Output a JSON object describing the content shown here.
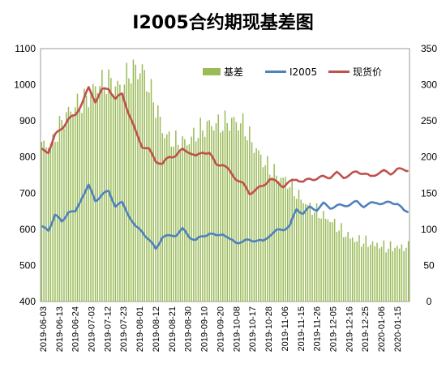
{
  "chart_data": {
    "type": "bar+line",
    "title": "I2005合约期现基差图",
    "y_left": {
      "range": [
        400,
        1100
      ],
      "ticks": [
        "400",
        "500",
        "600",
        "700",
        "800",
        "900",
        "1000",
        "1100"
      ]
    },
    "y_right": {
      "range": [
        0,
        350
      ],
      "ticks": [
        "0",
        "50",
        "100",
        "150",
        "200",
        "250",
        "300",
        "350"
      ]
    },
    "x_tick_labels": [
      "2019-06-03",
      "2019-06-13",
      "2019-06-24",
      "2019-07-03",
      "2019-07-12",
      "2019-07-23",
      "2019-08-01",
      "2019-08-12",
      "2019-08-21",
      "2019-08-30",
      "2019-09-10",
      "2019-09-20",
      "2019-10-08",
      "2019-10-17",
      "2019-10-28",
      "2019-11-06",
      "2019-11-15",
      "2019-11-26",
      "2019-12-05",
      "2019-12-16",
      "2019-12-25",
      "2020-01-06",
      "2020-01-15"
    ],
    "legend": [
      {
        "name": "基差",
        "color": "#9bbb59",
        "kind": "bar"
      },
      {
        "name": "I2005",
        "color": "#4f81bd",
        "kind": "line"
      },
      {
        "name": "现货价",
        "color": "#c0504d",
        "kind": "line"
      }
    ],
    "series": [
      {
        "name": "基差",
        "axis": "right",
        "x": [
          0,
          5,
          10,
          15,
          20,
          25,
          30,
          35,
          40,
          45,
          50,
          55,
          60,
          65,
          70,
          75,
          80,
          85,
          90,
          95,
          100,
          105,
          110,
          115,
          120,
          125,
          130,
          135,
          140,
          145,
          150,
          155,
          160
        ],
        "values": [
          215,
          220,
          255,
          270,
          280,
          300,
          305,
          295,
          320,
          320,
          280,
          230,
          220,
          220,
          235,
          245,
          245,
          250,
          245,
          215,
          190,
          175,
          165,
          145,
          130,
          120,
          110,
          95,
          85,
          82,
          78,
          75,
          75
        ]
      },
      {
        "name": "I2005",
        "axis": "left",
        "x": [
          0,
          3,
          6,
          9,
          12,
          15,
          18,
          21,
          24,
          27,
          30,
          33,
          36,
          39,
          42,
          45,
          48,
          51,
          54,
          57,
          60,
          63,
          66,
          69,
          72,
          75,
          78,
          81,
          84,
          87,
          90,
          93,
          96,
          99,
          102,
          105,
          108,
          111,
          114,
          117,
          120,
          123,
          126,
          129,
          132,
          135,
          138,
          141,
          144,
          147,
          150,
          153,
          156,
          159,
          162
        ],
        "values": [
          605,
          598,
          640,
          620,
          650,
          645,
          690,
          720,
          680,
          695,
          705,
          665,
          672,
          640,
          605,
          595,
          570,
          545,
          580,
          580,
          585,
          600,
          580,
          570,
          580,
          590,
          580,
          590,
          570,
          565,
          565,
          570,
          570,
          565,
          585,
          595,
          600,
          610,
          655,
          645,
          660,
          655,
          670,
          660,
          665,
          665,
          670,
          675,
          665,
          670,
          675,
          670,
          675,
          672,
          650
        ]
      },
      {
        "name": "现货价",
        "axis": "left",
        "x": [
          0,
          3,
          6,
          9,
          12,
          15,
          18,
          21,
          24,
          27,
          30,
          33,
          36,
          39,
          42,
          45,
          48,
          51,
          54,
          57,
          60,
          63,
          66,
          69,
          72,
          75,
          78,
          81,
          84,
          87,
          90,
          93,
          96,
          99,
          102,
          105,
          108,
          111,
          114,
          117,
          120,
          123,
          126,
          129,
          132,
          135,
          138,
          141,
          144,
          147,
          150,
          153,
          156,
          159,
          162
        ],
        "values": [
          820,
          815,
          860,
          880,
          905,
          915,
          950,
          990,
          955,
          985,
          990,
          960,
          975,
          920,
          870,
          830,
          820,
          790,
          780,
          800,
          805,
          820,
          815,
          800,
          815,
          810,
          780,
          780,
          760,
          740,
          725,
          700,
          710,
          720,
          740,
          730,
          720,
          730,
          740,
          730,
          740,
          740,
          745,
          745,
          755,
          745,
          750,
          760,
          755,
          745,
          755,
          760,
          755,
          765,
          765
        ]
      }
    ]
  }
}
